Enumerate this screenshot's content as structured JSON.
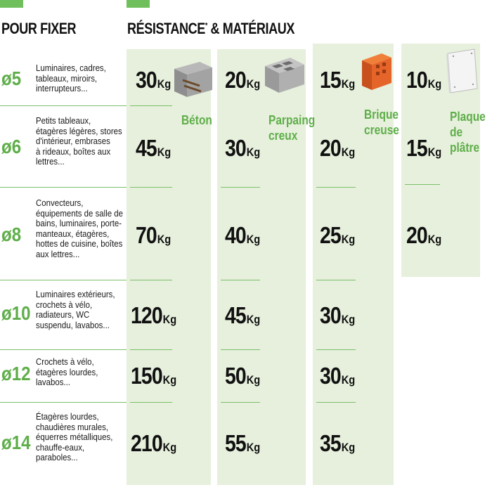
{
  "header": {
    "left_title": "POUR FIXER",
    "right_title": "RÉSISTANCE",
    "right_title_mark": "*",
    "right_title_rest": " & MATÉRIAUX",
    "accent_color": "#6fbf5c"
  },
  "materials": [
    {
      "name_lines": [
        "Béton"
      ],
      "icon": "concrete-block-icon"
    },
    {
      "name_lines": [
        "Parpaing",
        "creux"
      ],
      "icon": "hollow-block-icon"
    },
    {
      "name_lines": [
        "Brique",
        "creuse"
      ],
      "icon": "hollow-brick-icon"
    },
    {
      "name_lines": [
        "Plaque",
        "de",
        "plâtre"
      ],
      "icon": "plasterboard-icon"
    }
  ],
  "unit": "Kg",
  "rows": [
    {
      "diameter": "ø5",
      "desc": [
        "Luminaires, cadres,",
        "tableaux, miroirs,",
        "interrupteurs..."
      ],
      "values": [
        "30",
        "20",
        "15",
        "10"
      ]
    },
    {
      "diameter": "ø6",
      "desc": [
        "Petits tableaux,",
        "étagères légères, stores",
        "d'intérieur, embrases",
        "à rideaux, boîtes aux",
        "lettres..."
      ],
      "values": [
        "45",
        "30",
        "20",
        "15"
      ]
    },
    {
      "diameter": "ø8",
      "desc": [
        "Convecteurs,",
        "équipements de salle de",
        "bains, luminaires, porte-",
        "manteaux, étagères,",
        "hottes de cuisine, boîtes",
        "aux lettres..."
      ],
      "values": [
        "70",
        "40",
        "25",
        "20"
      ]
    },
    {
      "diameter": "ø10",
      "desc": [
        "Luminaires extérieurs,",
        "crochets à vélo,",
        "radiateurs, WC",
        "suspendu, lavabos..."
      ],
      "values": [
        "120",
        "45",
        "30"
      ]
    },
    {
      "diameter": "ø12",
      "desc": [
        "Crochets à vélo,",
        "étagères lourdes,",
        "lavabos..."
      ],
      "values": [
        "150",
        "50",
        "30"
      ]
    },
    {
      "diameter": "ø14",
      "desc": [
        "Étagères lourdes,",
        "chaudières murales,",
        "équerres métalliques,",
        "chauffe-eaux,",
        "paraboles..."
      ],
      "values": [
        "210",
        "55",
        "35"
      ]
    }
  ]
}
